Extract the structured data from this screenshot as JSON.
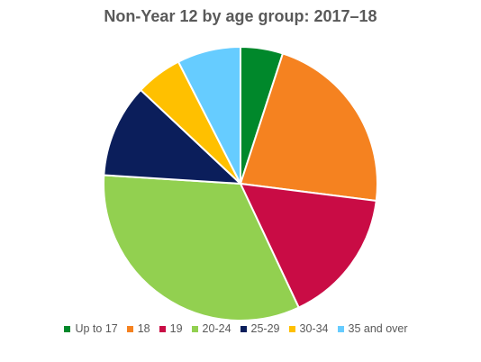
{
  "chart_data": {
    "type": "pie",
    "title": "Non-Year 12 by age group: 2017–18",
    "categories": [
      "Up to 17",
      "18",
      "19",
      "20-24",
      "25-29",
      "30-34",
      "35 and over"
    ],
    "values": [
      5,
      22,
      16,
      33,
      11,
      5.5,
      7.5
    ],
    "colors": [
      "#00882B",
      "#F58220",
      "#C90C45",
      "#92D050",
      "#0B1E5B",
      "#FFC000",
      "#66CCFF"
    ],
    "start_angle_deg": 0,
    "direction": "clockwise",
    "legend_position": "bottom"
  }
}
